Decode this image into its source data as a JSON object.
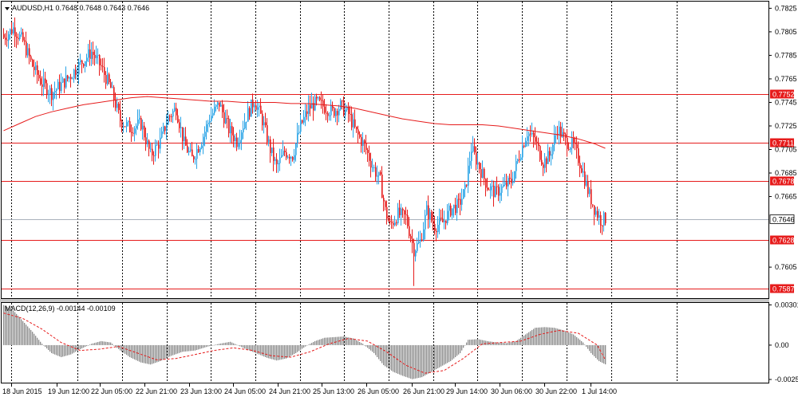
{
  "chart_data": [
    {
      "type": "candlestick",
      "title": "AUDUSD,H1  0.7648 0.7648 0.7643 0.7646",
      "symbol": "AUDUSD",
      "timeframe": "H1",
      "last_ohlc": {
        "open": 0.7648,
        "high": 0.7648,
        "low": 0.7643,
        "close": 0.7646
      },
      "ylim": [
        0.758,
        0.783
      ],
      "y_ticks": [
        "0.7825",
        "0.7805",
        "0.7785",
        "0.7765",
        "0.7745",
        "0.7725",
        "0.7705",
        "0.7685",
        "0.7665",
        "0.7605"
      ],
      "x_ticks": [
        "18 Jun 2015",
        "19 Jun 12:00",
        "22 Jun 05:00",
        "22 Jun 21:00",
        "23 Jun 13:00",
        "24 Jun 05:00",
        "24 Jun 21:00",
        "25 Jun 13:00",
        "26 Jun 05:00",
        "26 Jun 21:00",
        "29 Jun 14:00",
        "30 Jun 06:00",
        "30 Jun 22:00",
        "1 Jul 14:00"
      ],
      "grid": true,
      "colors": {
        "bull": "#29a3e6",
        "bear": "#e61c1c",
        "ma": "#e61c1c",
        "level": "#e61c1c",
        "current": "#aab2bc"
      },
      "horizontal_levels": [
        0.7752,
        0.7711,
        0.7678,
        0.7628,
        0.7587
      ],
      "level_labels": [
        "0.7752",
        "0.7711",
        "0.7678",
        "0.7628",
        "0.7587"
      ],
      "current_price": 0.7646,
      "current_price_label": "0.7646",
      "moving_average": [
        [
          0,
          0.7721
        ],
        [
          10,
          0.7727
        ],
        [
          20,
          0.7733
        ],
        [
          30,
          0.7737
        ],
        [
          40,
          0.774
        ],
        [
          50,
          0.7743
        ],
        [
          60,
          0.7745
        ],
        [
          70,
          0.7747
        ],
        [
          80,
          0.7749
        ],
        [
          90,
          0.775
        ],
        [
          100,
          0.7749
        ],
        [
          110,
          0.7748
        ],
        [
          120,
          0.7747
        ],
        [
          130,
          0.7746
        ],
        [
          140,
          0.7746
        ],
        [
          150,
          0.7745
        ],
        [
          160,
          0.7745
        ],
        [
          170,
          0.7745
        ],
        [
          180,
          0.7744
        ],
        [
          190,
          0.7744
        ],
        [
          200,
          0.7743
        ],
        [
          210,
          0.7742
        ],
        [
          220,
          0.774
        ],
        [
          230,
          0.7737
        ],
        [
          240,
          0.7734
        ],
        [
          250,
          0.7731
        ],
        [
          260,
          0.7729
        ],
        [
          270,
          0.7727
        ],
        [
          280,
          0.7726
        ],
        [
          290,
          0.7726
        ],
        [
          300,
          0.7726
        ],
        [
          310,
          0.7725
        ],
        [
          320,
          0.7723
        ],
        [
          330,
          0.7721
        ],
        [
          340,
          0.7719
        ],
        [
          350,
          0.7717
        ],
        [
          360,
          0.7714
        ],
        [
          370,
          0.771
        ],
        [
          377,
          0.7706
        ]
      ],
      "candles_key": [
        [
          0,
          0.78
        ],
        [
          6,
          0.7808
        ],
        [
          12,
          0.7797
        ],
        [
          18,
          0.7776
        ],
        [
          24,
          0.7761
        ],
        [
          30,
          0.7753
        ],
        [
          36,
          0.776
        ],
        [
          42,
          0.7768
        ],
        [
          48,
          0.7778
        ],
        [
          55,
          0.7788
        ],
        [
          61,
          0.7775
        ],
        [
          67,
          0.7757
        ],
        [
          73,
          0.773
        ],
        [
          79,
          0.7723
        ],
        [
          86,
          0.7727
        ],
        [
          92,
          0.77
        ],
        [
          98,
          0.7712
        ],
        [
          103,
          0.7732
        ],
        [
          108,
          0.774
        ],
        [
          113,
          0.771
        ],
        [
          118,
          0.7697
        ],
        [
          124,
          0.7713
        ],
        [
          129,
          0.7732
        ],
        [
          135,
          0.7744
        ],
        [
          141,
          0.7722
        ],
        [
          146,
          0.7712
        ],
        [
          152,
          0.7733
        ],
        [
          157,
          0.7747
        ],
        [
          162,
          0.773
        ],
        [
          167,
          0.7705
        ],
        [
          171,
          0.769
        ],
        [
          176,
          0.7703
        ],
        [
          181,
          0.77
        ],
        [
          186,
          0.7725
        ],
        [
          191,
          0.774
        ],
        [
          196,
          0.7745
        ],
        [
          201,
          0.7741
        ],
        [
          206,
          0.7737
        ],
        [
          211,
          0.7742
        ],
        [
          216,
          0.7735
        ],
        [
          221,
          0.7719
        ],
        [
          226,
          0.7708
        ],
        [
          231,
          0.7691
        ],
        [
          236,
          0.7678
        ],
        [
          239,
          0.7653
        ],
        [
          242,
          0.764
        ],
        [
          247,
          0.765
        ],
        [
          252,
          0.7647
        ],
        [
          257,
          0.762
        ],
        [
          261,
          0.7627
        ],
        [
          265,
          0.7653
        ],
        [
          270,
          0.764
        ],
        [
          275,
          0.7643
        ],
        [
          280,
          0.7654
        ],
        [
          285,
          0.7658
        ],
        [
          289,
          0.767
        ],
        [
          293,
          0.7706
        ],
        [
          298,
          0.769
        ],
        [
          303,
          0.7674
        ],
        [
          308,
          0.7668
        ],
        [
          313,
          0.7673
        ],
        [
          318,
          0.7678
        ],
        [
          323,
          0.77
        ],
        [
          328,
          0.772
        ],
        [
          333,
          0.7712
        ],
        [
          338,
          0.7694
        ],
        [
          342,
          0.77
        ],
        [
          347,
          0.7723
        ],
        [
          352,
          0.7712
        ],
        [
          357,
          0.7708
        ],
        [
          362,
          0.769
        ],
        [
          366,
          0.767
        ],
        [
          370,
          0.7655
        ],
        [
          374,
          0.7645
        ],
        [
          377,
          0.7646
        ]
      ]
    },
    {
      "type": "bar",
      "title": "MACD(12,26,9) -0.00144 -0.00109",
      "indicator": "MACD(12,26,9)",
      "macd_value": -0.00144,
      "signal_value": -0.00109,
      "ylim": [
        -0.00275,
        0.0031
      ],
      "y_ticks": [
        "0.00301",
        "0.00",
        "-0.00257"
      ],
      "colors": {
        "histogram": "#8c8c8c",
        "signal": "#e61c1c"
      },
      "histogram_key": [
        [
          0,
          0.003
        ],
        [
          6,
          0.0026
        ],
        [
          12,
          0.0018
        ],
        [
          18,
          0.001
        ],
        [
          24,
          0.0001
        ],
        [
          30,
          -0.0006
        ],
        [
          36,
          -0.0009
        ],
        [
          42,
          -0.0007
        ],
        [
          48,
          -0.0003
        ],
        [
          55,
          0.0001
        ],
        [
          61,
          0.0003
        ],
        [
          67,
          0.0002
        ],
        [
          73,
          -0.0004
        ],
        [
          79,
          -0.0009
        ],
        [
          86,
          -0.0013
        ],
        [
          92,
          -0.00145
        ],
        [
          98,
          -0.0012
        ],
        [
          105,
          -0.0008
        ],
        [
          112,
          -0.0005
        ],
        [
          120,
          -0.0004
        ],
        [
          128,
          -0.0001
        ],
        [
          135,
          0.0001
        ],
        [
          142,
          0.00025
        ],
        [
          150,
          -0.0002
        ],
        [
          158,
          -0.0006
        ],
        [
          165,
          -0.00095
        ],
        [
          171,
          -0.00115
        ],
        [
          177,
          -0.001
        ],
        [
          183,
          -0.0006
        ],
        [
          189,
          -0.0001
        ],
        [
          195,
          0.0003
        ],
        [
          201,
          0.00055
        ],
        [
          207,
          0.0006
        ],
        [
          213,
          0.00065
        ],
        [
          219,
          0.0005
        ],
        [
          225,
          0.0001
        ],
        [
          232,
          -0.0006
        ],
        [
          238,
          -0.0015
        ],
        [
          244,
          -0.002
        ],
        [
          250,
          -0.0023
        ],
        [
          256,
          -0.00255
        ],
        [
          262,
          -0.0024
        ],
        [
          268,
          -0.002
        ],
        [
          274,
          -0.0016
        ],
        [
          280,
          -0.0012
        ],
        [
          286,
          -0.0006
        ],
        [
          291,
          0.0004
        ],
        [
          297,
          0.00045
        ],
        [
          303,
          0.0003
        ],
        [
          309,
          0.0002
        ],
        [
          315,
          0.00015
        ],
        [
          321,
          0.0003
        ],
        [
          327,
          0.0008
        ],
        [
          333,
          0.0013
        ],
        [
          339,
          0.00135
        ],
        [
          345,
          0.0013
        ],
        [
          351,
          0.0011
        ],
        [
          357,
          0.0008
        ],
        [
          363,
          0.0002
        ],
        [
          368,
          -0.0006
        ],
        [
          373,
          -0.0012
        ],
        [
          377,
          -0.00144
        ]
      ],
      "signal_key": [
        [
          0,
          0.0024
        ],
        [
          12,
          0.002
        ],
        [
          24,
          0.0012
        ],
        [
          36,
          0.0002
        ],
        [
          48,
          -0.0004
        ],
        [
          60,
          -0.0003
        ],
        [
          72,
          -0.0001
        ],
        [
          84,
          -0.0006
        ],
        [
          96,
          -0.0011
        ],
        [
          108,
          -0.001
        ],
        [
          120,
          -0.0007
        ],
        [
          132,
          -0.0004
        ],
        [
          144,
          -0.0002
        ],
        [
          156,
          -0.0004
        ],
        [
          168,
          -0.0008
        ],
        [
          180,
          -0.0009
        ],
        [
          192,
          -0.0005
        ],
        [
          204,
          0.0001
        ],
        [
          216,
          0.0005
        ],
        [
          228,
          0.0003
        ],
        [
          240,
          -0.0005
        ],
        [
          252,
          -0.0015
        ],
        [
          264,
          -0.0021
        ],
        [
          276,
          -0.0019
        ],
        [
          288,
          -0.001
        ],
        [
          300,
          0.0001
        ],
        [
          312,
          0.0002
        ],
        [
          324,
          0.0003
        ],
        [
          336,
          0.0008
        ],
        [
          348,
          0.0011
        ],
        [
          360,
          0.0009
        ],
        [
          372,
          0.0
        ],
        [
          377,
          -0.00109
        ]
      ]
    }
  ]
}
